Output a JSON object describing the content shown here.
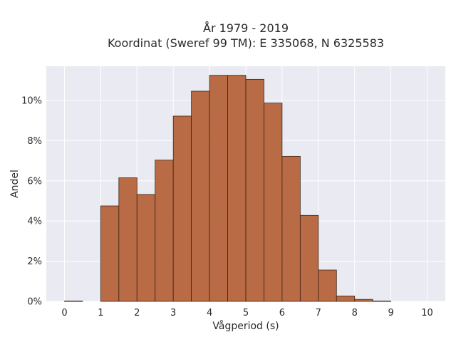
{
  "chart_data": {
    "type": "bar",
    "title_line1": "År 1979 - 2019",
    "title_line2": "Koordinat (Sweref 99 TM): E 335068, N 6325583",
    "xlabel": "Vågperiod (s)",
    "ylabel": "Andel",
    "bin_width": 0.5,
    "bins": [
      {
        "start": 0.0,
        "value": 0.02
      },
      {
        "start": 0.5,
        "value": 0.0
      },
      {
        "start": 1.0,
        "value": 4.75
      },
      {
        "start": 1.5,
        "value": 6.15
      },
      {
        "start": 2.0,
        "value": 5.32
      },
      {
        "start": 2.5,
        "value": 7.03
      },
      {
        "start": 3.0,
        "value": 9.22
      },
      {
        "start": 3.5,
        "value": 10.46
      },
      {
        "start": 4.0,
        "value": 11.25
      },
      {
        "start": 4.5,
        "value": 11.25
      },
      {
        "start": 5.0,
        "value": 11.05
      },
      {
        "start": 5.5,
        "value": 9.87
      },
      {
        "start": 6.0,
        "value": 7.22
      },
      {
        "start": 6.5,
        "value": 4.28
      },
      {
        "start": 7.0,
        "value": 1.56
      },
      {
        "start": 7.5,
        "value": 0.27
      },
      {
        "start": 8.0,
        "value": 0.1
      },
      {
        "start": 8.5,
        "value": 0.02
      },
      {
        "start": 9.0,
        "value": 0.0
      },
      {
        "start": 9.5,
        "value": 0.0
      }
    ],
    "xlim": [
      -0.5,
      10.5
    ],
    "ylim": [
      0,
      11.7
    ],
    "x_ticks": [
      0,
      1,
      2,
      3,
      4,
      5,
      6,
      7,
      8,
      9,
      10
    ],
    "y_ticks": [
      0,
      2,
      4,
      6,
      8,
      10
    ],
    "y_tick_labels": [
      "0%",
      "2%",
      "4%",
      "6%",
      "8%",
      "10%"
    ],
    "grid": true,
    "colors": {
      "bar_fill": "#b5643a",
      "bar_edge": "#3d2518",
      "plot_background": "#eaeaf2",
      "grid": "#ffffff"
    }
  }
}
